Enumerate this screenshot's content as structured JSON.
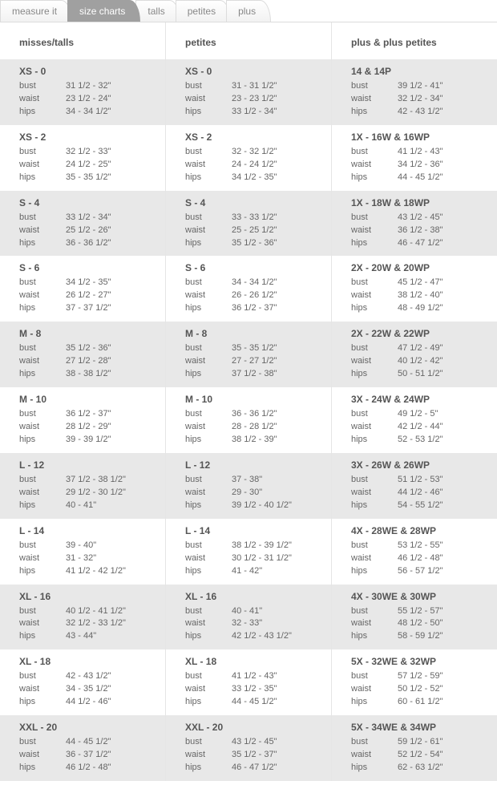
{
  "tabs": {
    "items": [
      {
        "label": "measure it",
        "active": false
      },
      {
        "label": "size charts",
        "active": true
      },
      {
        "label": "talls",
        "active": false
      },
      {
        "label": "petites",
        "active": false
      },
      {
        "label": "plus",
        "active": false
      }
    ]
  },
  "columns": [
    {
      "header": "misses/talls",
      "blocks": [
        {
          "title": "XS - 0",
          "bust": "31 1/2 - 32\"",
          "waist": "23 1/2 - 24\"",
          "hips": "34 - 34 1/2\""
        },
        {
          "title": "XS - 2",
          "bust": "32 1/2 - 33\"",
          "waist": "24 1/2 - 25\"",
          "hips": "35 - 35 1/2\""
        },
        {
          "title": "S - 4",
          "bust": "33 1/2 - 34\"",
          "waist": "25 1/2 - 26\"",
          "hips": "36 - 36 1/2\""
        },
        {
          "title": "S - 6",
          "bust": "34 1/2 - 35\"",
          "waist": "26 1/2 - 27\"",
          "hips": "37 - 37 1/2\""
        },
        {
          "title": "M - 8",
          "bust": "35 1/2 - 36\"",
          "waist": "27 1/2 - 28\"",
          "hips": "38 - 38 1/2\""
        },
        {
          "title": "M - 10",
          "bust": "36 1/2 - 37\"",
          "waist": "28 1/2 - 29\"",
          "hips": "39 - 39 1/2\""
        },
        {
          "title": "L - 12",
          "bust": "37 1/2 - 38 1/2\"",
          "waist": "29 1/2 - 30 1/2\"",
          "hips": "40 - 41\""
        },
        {
          "title": "L - 14",
          "bust": "39 - 40\"",
          "waist": "31 - 32\"",
          "hips": "41 1/2 - 42 1/2\""
        },
        {
          "title": "XL - 16",
          "bust": "40 1/2 - 41 1/2\"",
          "waist": "32 1/2 - 33 1/2\"",
          "hips": "43 - 44\""
        },
        {
          "title": "XL - 18",
          "bust": "42 - 43 1/2\"",
          "waist": "34 - 35 1/2\"",
          "hips": "44 1/2 - 46\""
        },
        {
          "title": "XXL - 20",
          "bust": "44 - 45 1/2\"",
          "waist": "36 - 37 1/2\"",
          "hips": "46 1/2 - 48\""
        }
      ]
    },
    {
      "header": "petites",
      "blocks": [
        {
          "title": "XS - 0",
          "bust": "31 - 31 1/2\"",
          "waist": "23 - 23 1/2\"",
          "hips": "33 1/2 - 34\""
        },
        {
          "title": "XS - 2",
          "bust": "32 - 32 1/2\"",
          "waist": "24 - 24 1/2\"",
          "hips": "34 1/2 - 35\""
        },
        {
          "title": "S - 4",
          "bust": "33 - 33 1/2\"",
          "waist": "25 - 25 1/2\"",
          "hips": "35 1/2 - 36\""
        },
        {
          "title": "S - 6",
          "bust": "34 - 34 1/2\"",
          "waist": "26 - 26 1/2\"",
          "hips": "36 1/2 - 37\""
        },
        {
          "title": "M - 8",
          "bust": "35 - 35 1/2\"",
          "waist": "27 - 27 1/2\"",
          "hips": "37 1/2 - 38\""
        },
        {
          "title": "M - 10",
          "bust": "36 - 36 1/2\"",
          "waist": "28 - 28 1/2\"",
          "hips": "38 1/2 - 39\""
        },
        {
          "title": "L - 12",
          "bust": "37 - 38\"",
          "waist": "29 - 30\"",
          "hips": "39 1/2 - 40 1/2\""
        },
        {
          "title": "L - 14",
          "bust": "38 1/2 - 39 1/2\"",
          "waist": "30 1/2 - 31 1/2\"",
          "hips": "41 - 42\""
        },
        {
          "title": "XL - 16",
          "bust": "40 - 41\"",
          "waist": "32 - 33\"",
          "hips": "42 1/2 - 43 1/2\""
        },
        {
          "title": "XL - 18",
          "bust": "41 1/2 - 43\"",
          "waist": "33 1/2 - 35\"",
          "hips": "44 - 45 1/2\""
        },
        {
          "title": "XXL - 20",
          "bust": "43 1/2 - 45\"",
          "waist": "35 1/2 - 37\"",
          "hips": "46 - 47 1/2\""
        }
      ]
    },
    {
      "header": "plus & plus petites",
      "blocks": [
        {
          "title": "14 & 14P",
          "bust": "39 1/2 - 41\"",
          "waist": "32 1/2 - 34\"",
          "hips": "42 - 43 1/2\""
        },
        {
          "title": "1X - 16W & 16WP",
          "bust": "41 1/2 - 43\"",
          "waist": "34 1/2 - 36\"",
          "hips": "44 - 45 1/2\""
        },
        {
          "title": "1X - 18W & 18WP",
          "bust": "43 1/2 - 45\"",
          "waist": "36 1/2 - 38\"",
          "hips": "46 - 47 1/2\""
        },
        {
          "title": "2X - 20W & 20WP",
          "bust": "45 1/2 - 47\"",
          "waist": "38 1/2 - 40\"",
          "hips": "48 - 49 1/2\""
        },
        {
          "title": "2X - 22W & 22WP",
          "bust": "47 1/2 - 49\"",
          "waist": "40 1/2 - 42\"",
          "hips": "50 - 51 1/2\""
        },
        {
          "title": "3X - 24W & 24WP",
          "bust": "49 1/2 - 5\"",
          "waist": "42 1/2 - 44\"",
          "hips": "52 - 53 1/2\""
        },
        {
          "title": "3X - 26W & 26WP",
          "bust": "51 1/2 - 53\"",
          "waist": "44 1/2 - 46\"",
          "hips": "54 - 55 1/2\""
        },
        {
          "title": "4X - 28WE & 28WP",
          "bust": "53 1/2 - 55\"",
          "waist": "46 1/2 - 48\"",
          "hips": "56 - 57 1/2\""
        },
        {
          "title": "4X - 30WE & 30WP",
          "bust": "55 1/2 - 57\"",
          "waist": "48 1/2 - 50\"",
          "hips": "58 - 59 1/2\""
        },
        {
          "title": "5X - 32WE & 32WP",
          "bust": "57 1/2 - 59\"",
          "waist": "50 1/2 - 52\"",
          "hips": "60 - 61 1/2\""
        },
        {
          "title": "5X - 34WE & 34WP",
          "bust": "59 1/2 - 61\"",
          "waist": "52 1/2 - 54\"",
          "hips": "62 - 63 1/2\""
        }
      ]
    }
  ],
  "rowLabels": {
    "bust": "bust",
    "waist": "waist",
    "hips": "hips"
  },
  "colors": {
    "background": "#ffffff",
    "shaded": "#e8e8e8",
    "border": "#e5e5e5",
    "text": "#555555",
    "activeTabBg": "#a0a0a0",
    "activeTabText": "#ffffff"
  }
}
